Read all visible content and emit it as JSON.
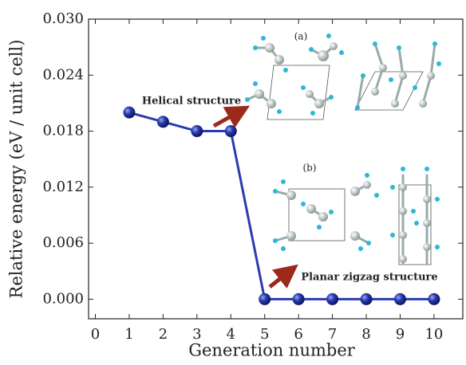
{
  "chart_data": {
    "type": "line",
    "xlabel": "Generation number",
    "ylabel": "Relative energy (eV / unit cell)",
    "x": [
      1,
      2,
      3,
      4,
      5,
      6,
      7,
      8,
      9,
      10
    ],
    "series": [
      {
        "color": "#2a3bb0",
        "values": [
          0.02,
          0.019,
          0.018,
          0.018,
          0.0,
          0.0,
          0.0,
          0.0,
          0.0,
          0.0
        ]
      }
    ],
    "xlim": [
      -0.2,
      10.85
    ],
    "ylim": [
      -0.0021,
      0.03
    ],
    "xticks": [
      0,
      1,
      2,
      3,
      4,
      5,
      6,
      7,
      8,
      9,
      10
    ],
    "yticks": [
      {
        "value": 0,
        "label": "0.000"
      },
      {
        "value": 0.006,
        "label": "0.006"
      },
      {
        "value": 0.012,
        "label": "0.012"
      },
      {
        "value": 0.018,
        "label": "0.018"
      },
      {
        "value": 0.024,
        "label": "0.024"
      },
      {
        "value": 0.03,
        "label": "0.030"
      }
    ],
    "annotations": [
      "Helical structure",
      "(a)",
      "(b)",
      "Planar zigzag structure"
    ],
    "grid": false
  }
}
